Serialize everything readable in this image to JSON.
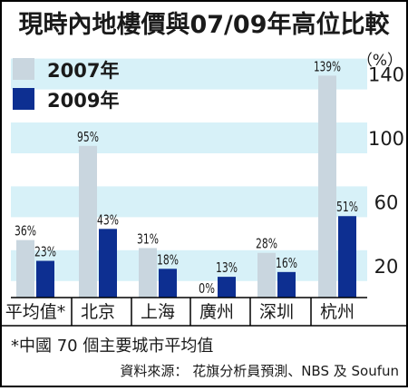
{
  "colors": {
    "series_2007": "#c9d6df",
    "series_2009": "#0d2f91",
    "band": "#d7f1f8",
    "text": "#1a1a1a"
  },
  "chart_data": {
    "type": "bar",
    "title": "現時內地樓價與07/09年高位比較",
    "unit_label": "（%）",
    "categories": [
      "平均值*",
      "北京",
      "上海",
      "廣州",
      "深圳",
      "杭州"
    ],
    "series": [
      {
        "name": "2007年",
        "values": [
          36,
          95,
          31,
          0,
          28,
          139
        ],
        "labels": [
          "36%",
          "95%",
          "31%",
          "0%",
          "28%",
          "139%"
        ]
      },
      {
        "name": "2009年",
        "values": [
          23,
          43,
          18,
          13,
          16,
          51
        ],
        "labels": [
          "23%",
          "43%",
          "18%",
          "13%",
          "16%",
          "51%"
        ]
      }
    ],
    "y_ticks": [
      20,
      60,
      100,
      140
    ],
    "ylim": [
      0,
      150
    ],
    "legend_position": "top-left",
    "grid": "banded"
  },
  "footnote": "*中國 70 個主要城市平均值",
  "source": "資料來源： 花旗分析員預測、NBS 及 Soufun"
}
